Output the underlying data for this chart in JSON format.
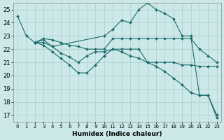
{
  "xlabel": "Humidex (Indice chaleur)",
  "xlim": [
    -0.5,
    23.5
  ],
  "ylim": [
    16.5,
    25.5
  ],
  "xticks": [
    0,
    1,
    2,
    3,
    4,
    5,
    6,
    7,
    8,
    9,
    10,
    11,
    12,
    13,
    14,
    15,
    16,
    17,
    18,
    19,
    20,
    21,
    22,
    23
  ],
  "yticks": [
    17,
    18,
    19,
    20,
    21,
    22,
    23,
    24,
    25
  ],
  "background_color": "#cce8e8",
  "grid_color": "#aacece",
  "line_color": "#1a6b6b",
  "series": [
    {
      "x": [
        0,
        1,
        2,
        3,
        4,
        10,
        11,
        12,
        13,
        14,
        15,
        16,
        17,
        18,
        19,
        20,
        21,
        22,
        23
      ],
      "y": [
        24.5,
        23.0,
        22.5,
        22.5,
        22.2,
        23.0,
        23.5,
        24.2,
        24.0,
        25.0,
        25.5,
        25.0,
        24.7,
        24.3,
        23.0,
        23.0,
        18.5,
        18.5,
        16.8
      ]
    },
    {
      "x": [
        2,
        3,
        4,
        5,
        6,
        7,
        8,
        9,
        10,
        11,
        12,
        13,
        14,
        15,
        16,
        17,
        18,
        19,
        20,
        21,
        22,
        23
      ],
      "y": [
        22.5,
        22.8,
        22.7,
        22.5,
        22.3,
        22.2,
        22.0,
        22.0,
        22.0,
        22.8,
        22.8,
        22.8,
        22.8,
        22.8,
        22.8,
        22.8,
        22.8,
        22.8,
        22.8,
        22.0,
        21.5,
        21.0
      ]
    },
    {
      "x": [
        2,
        3,
        4,
        5,
        6,
        7,
        8,
        9,
        10,
        11,
        12,
        13,
        14,
        15,
        16,
        17,
        18,
        19,
        20,
        21,
        22,
        23
      ],
      "y": [
        22.5,
        22.7,
        22.2,
        21.7,
        21.4,
        21.0,
        21.5,
        21.8,
        21.8,
        22.0,
        22.0,
        22.0,
        22.0,
        21.0,
        21.0,
        21.0,
        21.0,
        20.8,
        20.8,
        20.7,
        20.7,
        20.7
      ]
    },
    {
      "x": [
        2,
        3,
        4,
        5,
        6,
        7,
        8,
        9,
        10,
        11,
        12,
        13,
        14,
        15,
        16,
        17,
        18,
        19,
        20,
        21,
        22,
        23
      ],
      "y": [
        22.5,
        22.3,
        21.8,
        21.3,
        20.8,
        20.2,
        20.2,
        20.8,
        21.5,
        22.0,
        21.8,
        21.5,
        21.3,
        21.0,
        20.7,
        20.3,
        19.8,
        19.3,
        18.7,
        18.5,
        18.5,
        17.0
      ]
    }
  ]
}
